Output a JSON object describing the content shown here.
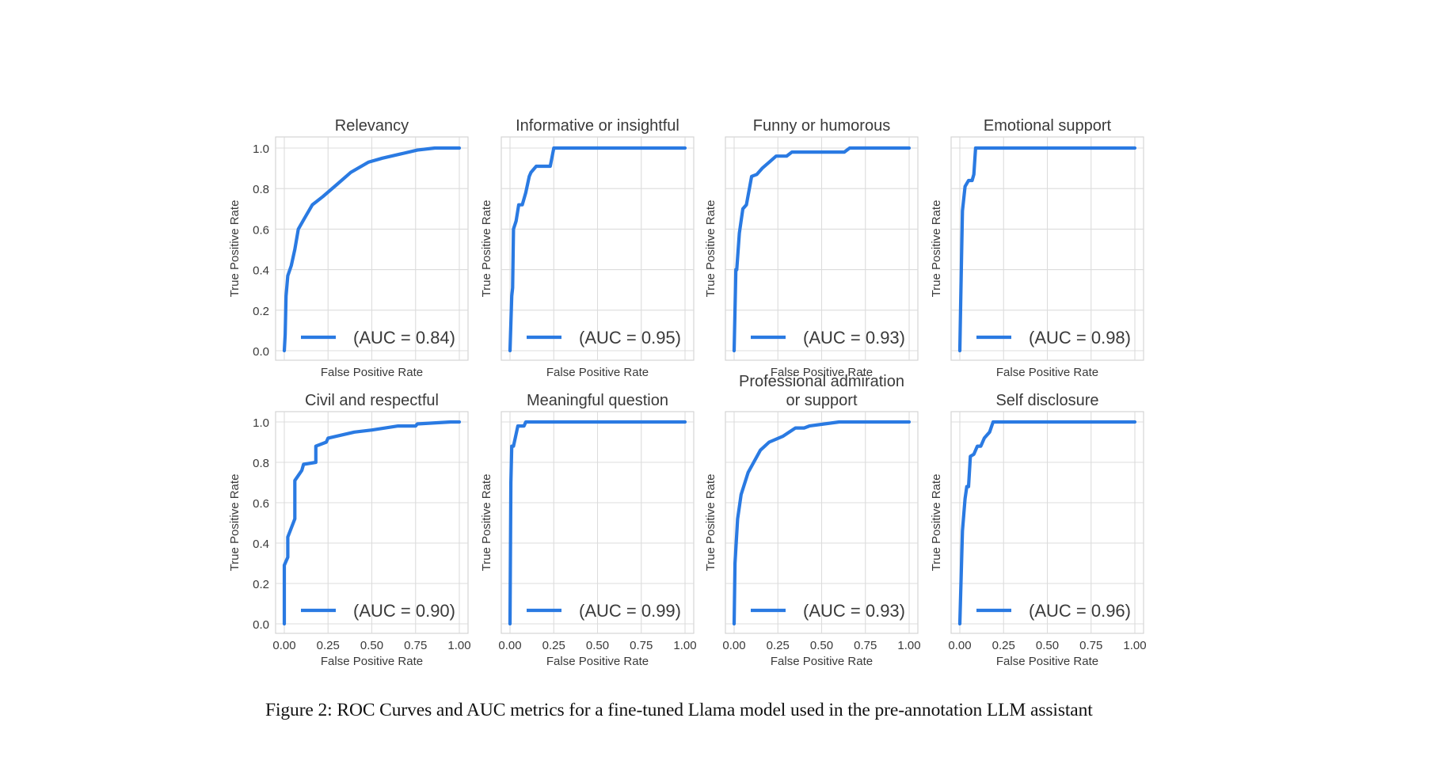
{
  "caption": "Figure 2: ROC Curves and AUC metrics for a fine-tuned Llama model used in the pre-annotation LLM assistant",
  "style": {
    "curve_color": "#2a7ae2",
    "grid_color": "#dcdcdc",
    "frame_color": "#d4d4d4",
    "text_color": "#3a3a3a"
  },
  "chart_data": [
    {
      "type": "line",
      "title": "Relevancy",
      "xlabel": "False Positive Rate",
      "ylabel": "True Positive Rate",
      "legend": "(AUC = 0.84)",
      "auc": 0.84,
      "xlim": [
        0,
        1
      ],
      "ylim": [
        0,
        1
      ],
      "xticks": [],
      "yticks": [
        "0.0",
        "0.2",
        "0.4",
        "0.6",
        "0.8",
        "1.0"
      ],
      "grid": true,
      "legend_position": "lower right",
      "x": [
        0,
        0.005,
        0.01,
        0.02,
        0.04,
        0.06,
        0.08,
        0.12,
        0.16,
        0.22,
        0.3,
        0.38,
        0.48,
        0.56,
        0.66,
        0.76,
        0.86,
        1.0
      ],
      "y": [
        0,
        0.08,
        0.27,
        0.37,
        0.42,
        0.5,
        0.6,
        0.66,
        0.72,
        0.76,
        0.82,
        0.88,
        0.93,
        0.95,
        0.97,
        0.99,
        1.0,
        1.0
      ]
    },
    {
      "type": "line",
      "title": "Informative or insightful",
      "xlabel": "False Positive Rate",
      "ylabel": "True Positive Rate",
      "legend": "(AUC = 0.95)",
      "auc": 0.95,
      "xlim": [
        0,
        1
      ],
      "ylim": [
        0,
        1
      ],
      "xticks": [],
      "yticks": [],
      "grid": true,
      "legend_position": "lower right",
      "x": [
        0,
        0.01,
        0.015,
        0.02,
        0.035,
        0.05,
        0.07,
        0.09,
        0.11,
        0.12,
        0.15,
        0.23,
        0.25,
        1.0
      ],
      "y": [
        0,
        0.27,
        0.31,
        0.6,
        0.64,
        0.72,
        0.72,
        0.78,
        0.86,
        0.88,
        0.91,
        0.91,
        1.0,
        1.0
      ]
    },
    {
      "type": "line",
      "title": "Funny or humorous",
      "xlabel": "False Positive Rate",
      "ylabel": "True Positive Rate",
      "legend": "(AUC = 0.93)",
      "auc": 0.93,
      "xlim": [
        0,
        1
      ],
      "ylim": [
        0,
        1
      ],
      "xticks": [],
      "yticks": [],
      "grid": true,
      "legend_position": "lower right",
      "x": [
        0,
        0.01,
        0.015,
        0.03,
        0.05,
        0.07,
        0.1,
        0.13,
        0.16,
        0.2,
        0.24,
        0.3,
        0.33,
        0.63,
        0.66,
        1.0
      ],
      "y": [
        0,
        0.4,
        0.4,
        0.58,
        0.7,
        0.72,
        0.86,
        0.87,
        0.9,
        0.93,
        0.96,
        0.96,
        0.98,
        0.98,
        1.0,
        1.0
      ]
    },
    {
      "type": "line",
      "title": "Emotional support",
      "xlabel": "False Positive Rate",
      "ylabel": "True Positive Rate",
      "legend": "(AUC = 0.98)",
      "auc": 0.98,
      "xlim": [
        0,
        1
      ],
      "ylim": [
        0,
        1
      ],
      "xticks": [],
      "yticks": [],
      "grid": true,
      "legend_position": "lower right",
      "x": [
        0,
        0.005,
        0.01,
        0.015,
        0.03,
        0.05,
        0.07,
        0.08,
        0.09,
        1.0
      ],
      "y": [
        0,
        0.24,
        0.47,
        0.69,
        0.81,
        0.84,
        0.84,
        0.87,
        1.0,
        1.0
      ]
    },
    {
      "type": "line",
      "title": "Civil and respectful",
      "xlabel": "False Positive Rate",
      "ylabel": "True Positive Rate",
      "legend": "(AUC = 0.90)",
      "auc": 0.9,
      "xlim": [
        0,
        1
      ],
      "ylim": [
        0,
        1
      ],
      "xticks": [
        "0.00",
        "0.25",
        "0.50",
        "0.75",
        "1.00"
      ],
      "yticks": [
        "0.0",
        "0.2",
        "0.4",
        "0.6",
        "0.8",
        "1.0"
      ],
      "grid": true,
      "legend_position": "lower right",
      "x": [
        0,
        0.0,
        0.02,
        0.02,
        0.06,
        0.06,
        0.1,
        0.11,
        0.18,
        0.18,
        0.24,
        0.25,
        0.4,
        0.5,
        0.65,
        0.75,
        0.76,
        0.95,
        1.0
      ],
      "y": [
        0,
        0.29,
        0.33,
        0.43,
        0.52,
        0.71,
        0.76,
        0.79,
        0.8,
        0.88,
        0.9,
        0.92,
        0.95,
        0.96,
        0.98,
        0.98,
        0.99,
        1.0,
        1.0
      ]
    },
    {
      "type": "line",
      "title": "Meaningful question",
      "xlabel": "False Positive Rate",
      "ylabel": "True Positive Rate",
      "legend": "(AUC = 0.99)",
      "auc": 0.99,
      "xlim": [
        0,
        1
      ],
      "ylim": [
        0,
        1
      ],
      "xticks": [
        "0.00",
        "0.25",
        "0.50",
        "0.75",
        "1.00"
      ],
      "yticks": [],
      "grid": true,
      "legend_position": "lower right",
      "x": [
        0,
        0.005,
        0.01,
        0.02,
        0.045,
        0.08,
        0.09,
        1.0
      ],
      "y": [
        0,
        0.7,
        0.88,
        0.88,
        0.98,
        0.98,
        1.0,
        1.0
      ]
    },
    {
      "type": "line",
      "title": "Professional admiration or support",
      "title_lines": [
        "Professional admiration",
        "or support"
      ],
      "xlabel": "False Positive Rate",
      "ylabel": "True Positive Rate",
      "legend": "(AUC = 0.93)",
      "auc": 0.93,
      "xlim": [
        0,
        1
      ],
      "ylim": [
        0,
        1
      ],
      "xticks": [
        "0.00",
        "0.25",
        "0.50",
        "0.75",
        "1.00"
      ],
      "yticks": [],
      "grid": true,
      "legend_position": "lower right",
      "x": [
        0,
        0.005,
        0.02,
        0.04,
        0.08,
        0.15,
        0.2,
        0.28,
        0.35,
        0.4,
        0.43,
        0.6,
        1.0
      ],
      "y": [
        0,
        0.3,
        0.52,
        0.64,
        0.75,
        0.86,
        0.9,
        0.93,
        0.97,
        0.97,
        0.98,
        1.0,
        1.0
      ]
    },
    {
      "type": "line",
      "title": "Self disclosure",
      "xlabel": "False Positive Rate",
      "ylabel": "True Positive Rate",
      "legend": "(AUC = 0.96)",
      "auc": 0.96,
      "xlim": [
        0,
        1
      ],
      "ylim": [
        0,
        1
      ],
      "xticks": [
        "0.00",
        "0.25",
        "0.50",
        "0.75",
        "1.00"
      ],
      "yticks": [],
      "grid": true,
      "legend_position": "lower right",
      "x": [
        0,
        0.015,
        0.03,
        0.04,
        0.05,
        0.06,
        0.08,
        0.1,
        0.12,
        0.14,
        0.17,
        0.19,
        1.0
      ],
      "y": [
        0,
        0.46,
        0.62,
        0.68,
        0.68,
        0.83,
        0.84,
        0.88,
        0.88,
        0.92,
        0.95,
        1.0,
        1.0
      ]
    }
  ]
}
